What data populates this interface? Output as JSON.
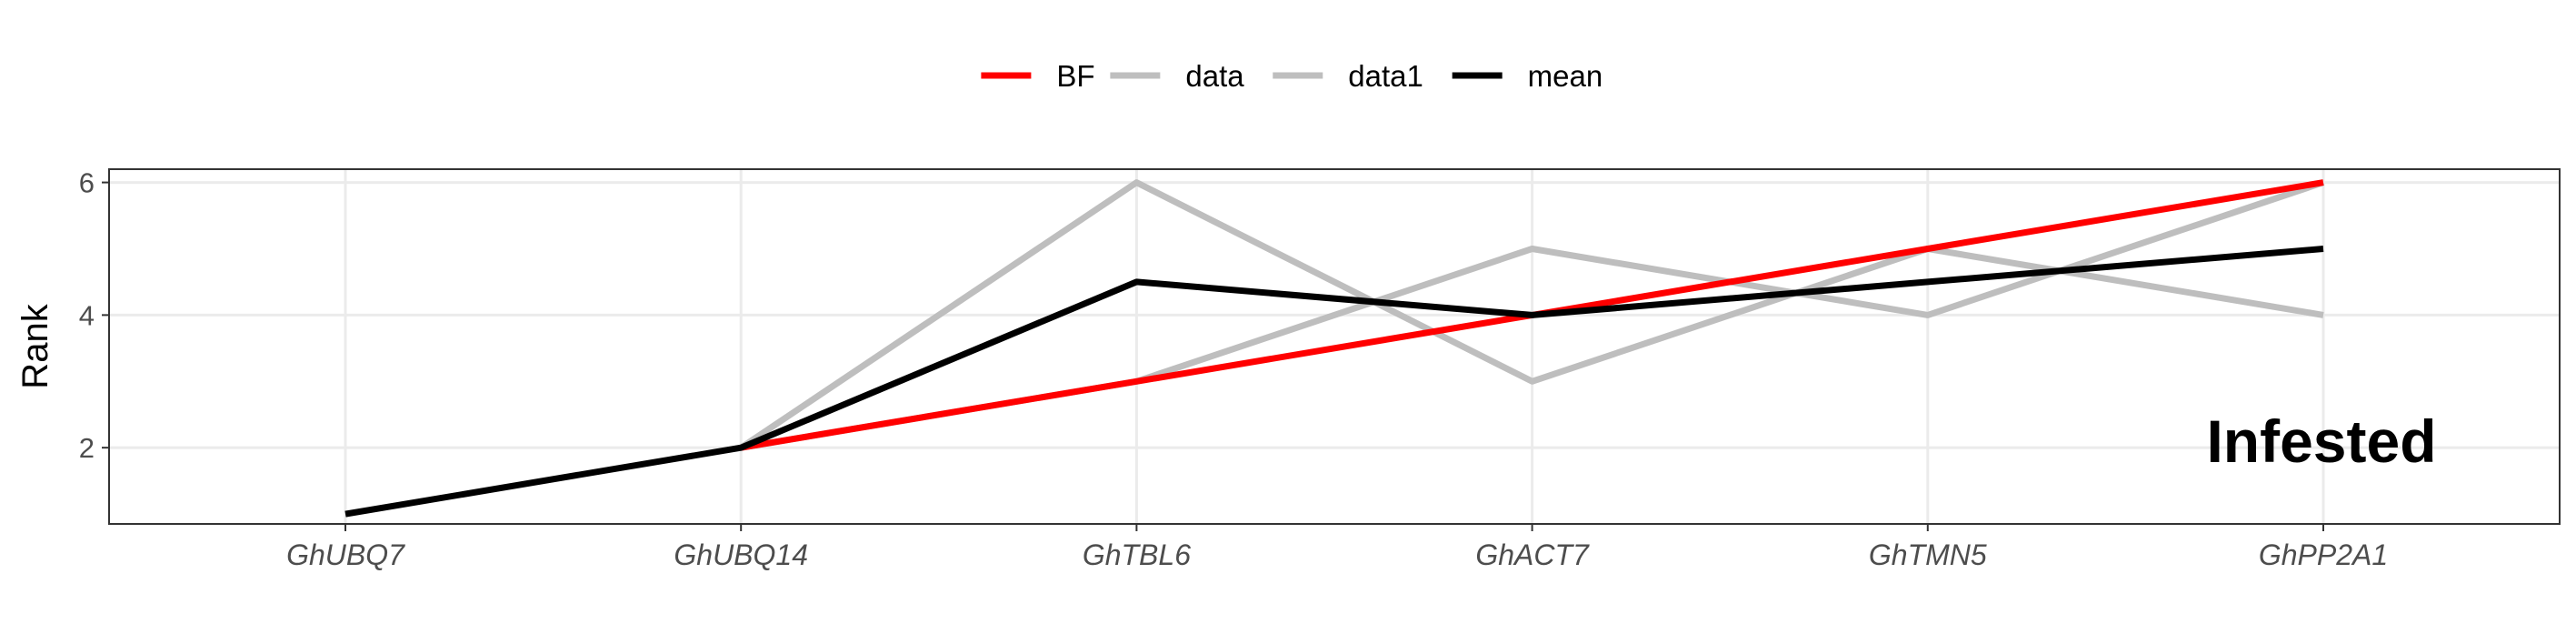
{
  "chart_data": {
    "type": "line",
    "categories": [
      "GhUBQ7",
      "GhUBQ14",
      "GhTBL6",
      "GhACT7",
      "GhTMN5",
      "GhPP2A1"
    ],
    "ylabel": "Rank",
    "xlabel": "",
    "ylim": [
      0.85,
      6.2
    ],
    "yticks": [
      2,
      4,
      6
    ],
    "grid": true,
    "legend_position": "top",
    "annotation": "Infested",
    "series": [
      {
        "name": "BF",
        "color": "#ff0000",
        "values": [
          null,
          2,
          3,
          4,
          5,
          6
        ]
      },
      {
        "name": "data",
        "color": "#bebebe",
        "values": [
          null,
          2,
          6,
          3,
          5,
          4
        ]
      },
      {
        "name": "data1",
        "color": "#bebebe",
        "values": [
          null,
          2,
          3,
          5,
          4,
          6
        ]
      },
      {
        "name": "mean",
        "color": "#000000",
        "values": [
          1,
          2,
          4.5,
          4,
          4.5,
          5
        ]
      }
    ],
    "draw_order": [
      "data",
      "data1",
      "BF",
      "mean"
    ]
  }
}
